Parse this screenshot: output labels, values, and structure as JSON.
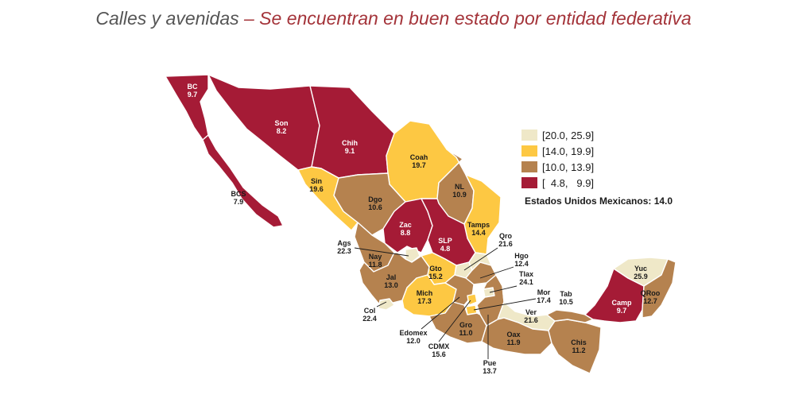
{
  "title": {
    "part1": "Calles  y avenidas",
    "part2": "– Se encuentran en buen estado por entidad federativa"
  },
  "colors": {
    "c1": "#efe8c8",
    "c2": "#fdc843",
    "c3": "#b5824f",
    "c4": "#a51b36"
  },
  "legend": [
    {
      "label": "[20.0, 25.9]",
      "color": "#efe8c8"
    },
    {
      "label": "[14.0, 19.9]",
      "color": "#fdc843"
    },
    {
      "label": "[10.0, 13.9]",
      "color": "#b5824f"
    },
    {
      "label": "[  4.8,   9.9]",
      "color": "#a51b36"
    }
  ],
  "national": "Estados Unidos Mexicanos: 14.0",
  "states": [
    {
      "id": "bc",
      "name": "BC",
      "value": "9.7",
      "class": "c4"
    },
    {
      "id": "bcs",
      "name": "BCS",
      "value": "7.9",
      "class": "c4"
    },
    {
      "id": "son",
      "name": "Son",
      "value": "8.2",
      "class": "c4"
    },
    {
      "id": "chih",
      "name": "Chih",
      "value": "9.1",
      "class": "c4"
    },
    {
      "id": "coah",
      "name": "Coah",
      "value": "19.7",
      "class": "c2"
    },
    {
      "id": "nl",
      "name": "NL",
      "value": "10.9",
      "class": "c3"
    },
    {
      "id": "tamps",
      "name": "Tamps",
      "value": "14.4",
      "class": "c2"
    },
    {
      "id": "sin",
      "name": "Sin",
      "value": "19.6",
      "class": "c2"
    },
    {
      "id": "dgo",
      "name": "Dgo",
      "value": "10.6",
      "class": "c3"
    },
    {
      "id": "zac",
      "name": "Zac",
      "value": "8.8",
      "class": "c4"
    },
    {
      "id": "slp",
      "name": "SLP",
      "value": "4.8",
      "class": "c4"
    },
    {
      "id": "nay",
      "name": "Nay",
      "value": "11.8",
      "class": "c3"
    },
    {
      "id": "ags",
      "name": "Ags",
      "value": "22.3",
      "class": "c1"
    },
    {
      "id": "jal",
      "name": "Jal",
      "value": "13.0",
      "class": "c3"
    },
    {
      "id": "col",
      "name": "Col",
      "value": "22.4",
      "class": "c1"
    },
    {
      "id": "gto",
      "name": "Gto",
      "value": "15.2",
      "class": "c2"
    },
    {
      "id": "qro",
      "name": "Qro",
      "value": "21.6",
      "class": "c1"
    },
    {
      "id": "hgo",
      "name": "Hgo",
      "value": "12.4",
      "class": "c3"
    },
    {
      "id": "mich",
      "name": "Mich",
      "value": "17.3",
      "class": "c2"
    },
    {
      "id": "edomex",
      "name": "Edomex",
      "value": "12.0",
      "class": "c3"
    },
    {
      "id": "cdmx",
      "name": "CDMX",
      "value": "15.6",
      "class": "c2"
    },
    {
      "id": "tlax",
      "name": "Tlax",
      "value": "24.1",
      "class": "c1"
    },
    {
      "id": "mor",
      "name": "Mor",
      "value": "17.4",
      "class": "c2"
    },
    {
      "id": "pue",
      "name": "Pue",
      "value": "13.7",
      "class": "c3"
    },
    {
      "id": "ver",
      "name": "Ver",
      "value": "21.6",
      "class": "c1"
    },
    {
      "id": "gro",
      "name": "Gro",
      "value": "11.0",
      "class": "c3"
    },
    {
      "id": "oax",
      "name": "Oax",
      "value": "11.9",
      "class": "c3"
    },
    {
      "id": "chis",
      "name": "Chis",
      "value": "11.2",
      "class": "c3"
    },
    {
      "id": "tab",
      "name": "Tab",
      "value": "10.5",
      "class": "c3"
    },
    {
      "id": "camp",
      "name": "Camp",
      "value": "9.7",
      "class": "c4"
    },
    {
      "id": "yuc",
      "name": "Yuc",
      "value": "25.9",
      "class": "c1"
    },
    {
      "id": "qroo",
      "name": "QRoo",
      "value": "12.7",
      "class": "c3"
    }
  ]
}
